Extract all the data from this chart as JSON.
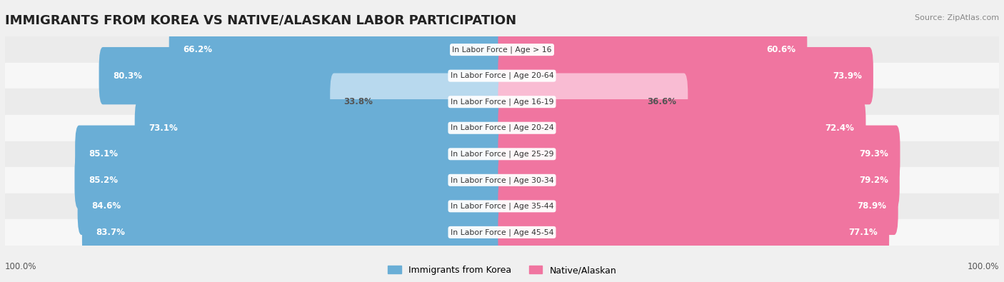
{
  "title": "IMMIGRANTS FROM KOREA VS NATIVE/ALASKAN LABOR PARTICIPATION",
  "source": "Source: ZipAtlas.com",
  "categories": [
    "In Labor Force | Age > 16",
    "In Labor Force | Age 20-64",
    "In Labor Force | Age 16-19",
    "In Labor Force | Age 20-24",
    "In Labor Force | Age 25-29",
    "In Labor Force | Age 30-34",
    "In Labor Force | Age 35-44",
    "In Labor Force | Age 45-54"
  ],
  "korea_values": [
    66.2,
    80.3,
    33.8,
    73.1,
    85.1,
    85.2,
    84.6,
    83.7
  ],
  "native_values": [
    60.6,
    73.9,
    36.6,
    72.4,
    79.3,
    79.2,
    78.9,
    77.1
  ],
  "korea_color_full": "#6aaed6",
  "korea_color_light": "#b8d9ee",
  "native_color_full": "#f075a0",
  "native_color_light": "#f9bcd3",
  "label_color_full": "#ffffff",
  "label_color_light": "#555555",
  "bar_height": 0.6,
  "background_color": "#f0f0f0",
  "row_bg_even": "#ebebeb",
  "row_bg_odd": "#f7f7f7",
  "legend_korea": "Immigrants from Korea",
  "legend_native": "Native/Alaskan",
  "title_fontsize": 13,
  "label_fontsize": 8.5,
  "category_fontsize": 7.8,
  "threshold_full": 50.0,
  "max_value": 100.0
}
